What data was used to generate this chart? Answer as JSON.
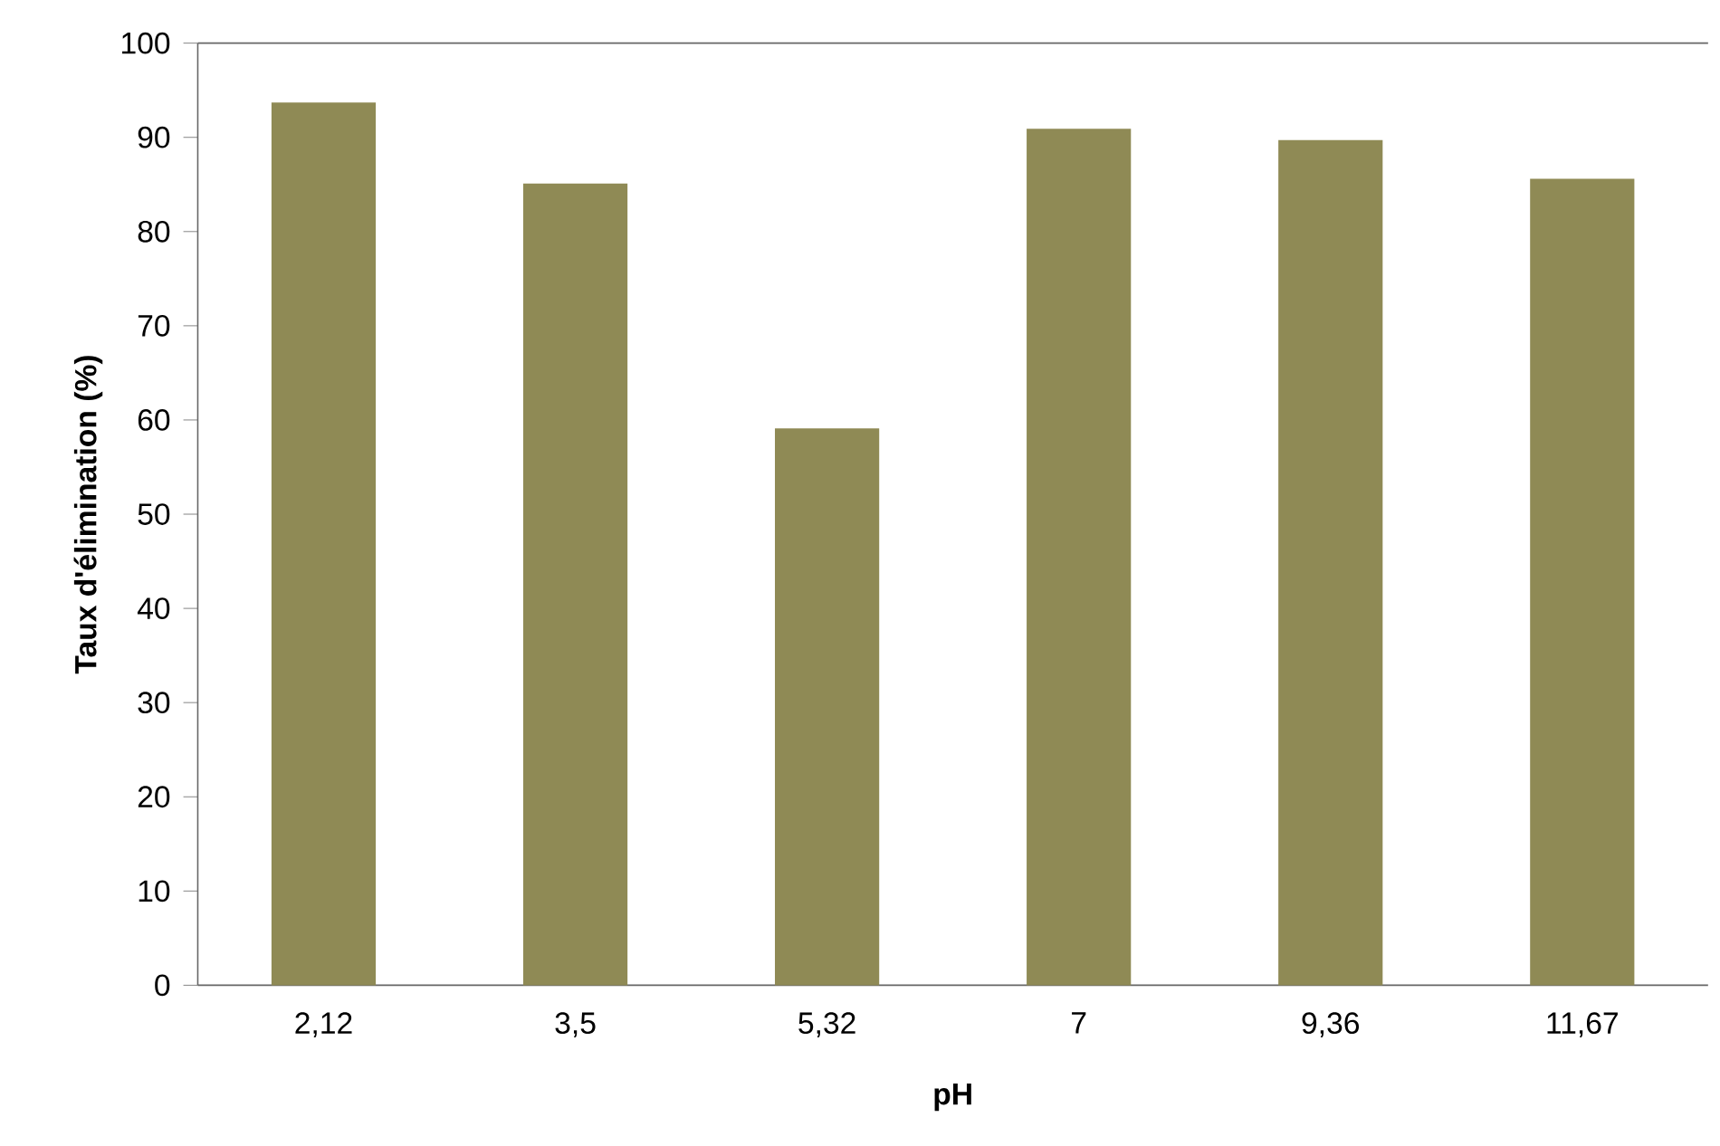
{
  "chart_data": {
    "type": "bar",
    "xlabel": "pH",
    "ylabel": "Taux d'élimination (%)",
    "categories": [
      "2,12",
      "3,5",
      "5,32",
      "7",
      "9,36",
      "11,67"
    ],
    "values": [
      93.7,
      85.1,
      59.1,
      90.9,
      89.7,
      85.6
    ],
    "color": "#8f8a55",
    "ylim": [
      0,
      100
    ],
    "yticks": [
      0,
      10,
      20,
      30,
      40,
      50,
      60,
      70,
      80,
      90,
      100
    ],
    "grid": false
  }
}
